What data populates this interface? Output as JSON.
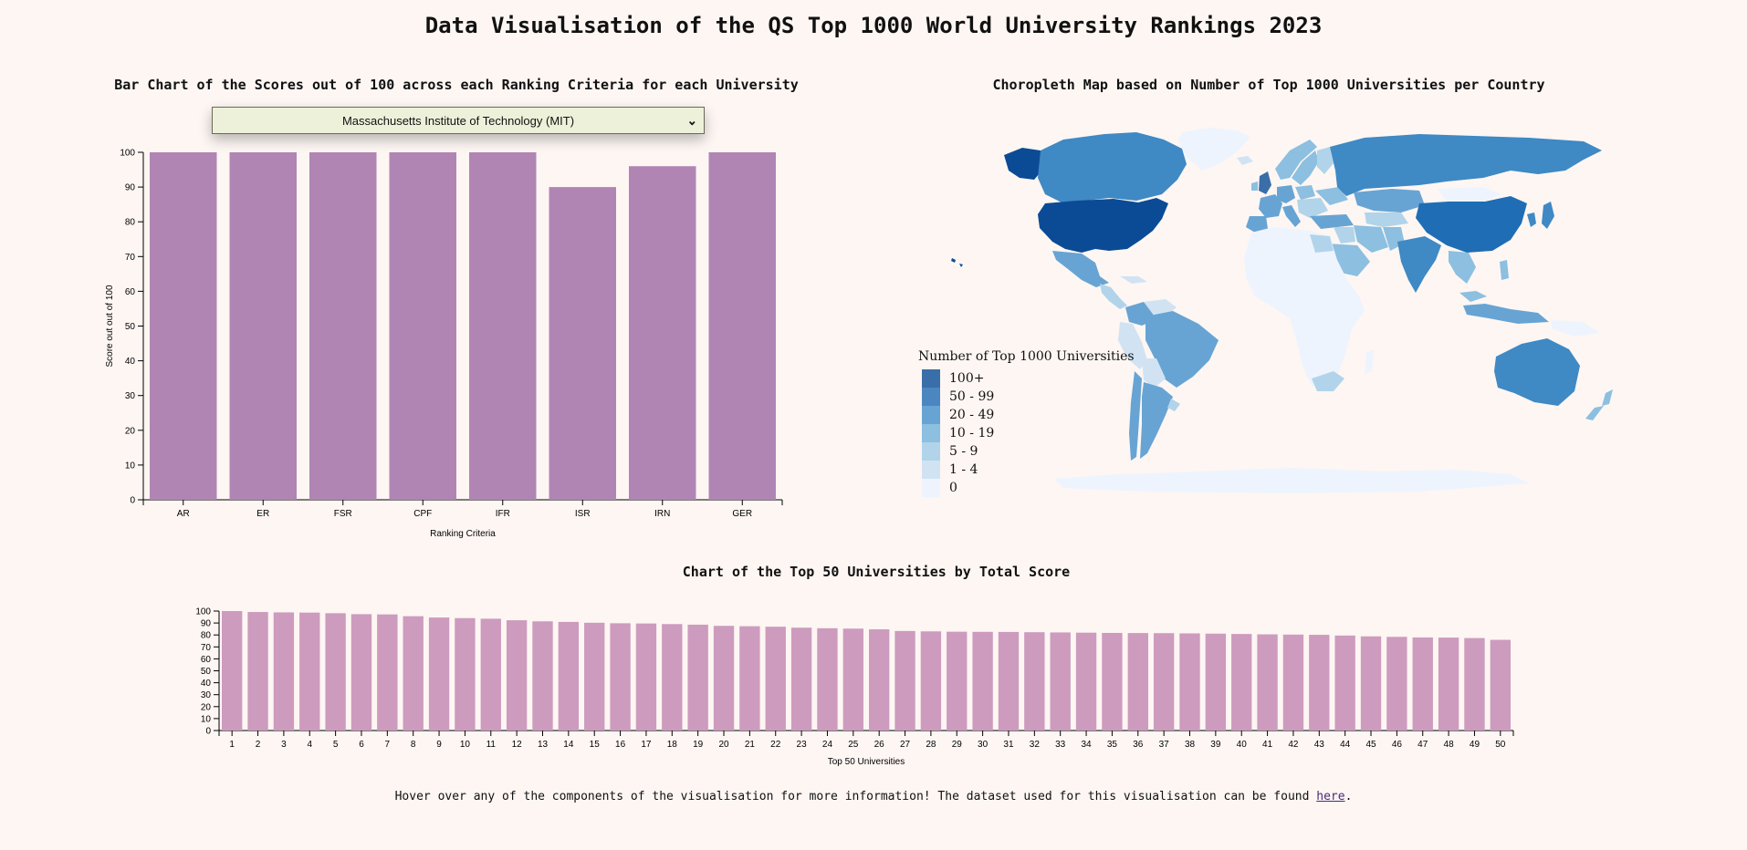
{
  "page": {
    "title": "Data Visualisation of the QS Top 1000 World University Rankings 2023",
    "footer_text": "Hover over any of the components of the visualisation for more information! The dataset used for this visualisation can be found",
    "footer_link": "here",
    "footer_end": "."
  },
  "select": {
    "value": "Massachusetts Institute of Technology (MIT)",
    "chevron": "⌄"
  },
  "colors": {
    "background": "#fdf6f3",
    "bar_fill": "#b085b4",
    "top50_fill": "#cd9bbe",
    "select_bg": "#eef1da"
  },
  "legend": {
    "title": "Number of Top 1000 Universities",
    "items": [
      {
        "label": "100+",
        "color": "#3a6ea8"
      },
      {
        "label": "50 - 99",
        "color": "#4c86c1"
      },
      {
        "label": "20 - 49",
        "color": "#67a4d3"
      },
      {
        "label": "10 - 19",
        "color": "#8cbfe0"
      },
      {
        "label": "5 - 9",
        "color": "#b1d4ea"
      },
      {
        "label": "1 - 4",
        "color": "#d1e3f3"
      },
      {
        "label": "0",
        "color": "#eef4fd"
      }
    ]
  },
  "chart_data": [
    {
      "type": "bar",
      "title": "Bar Chart of the Scores out of 100 across each Ranking Criteria for each University",
      "categories": [
        "AR",
        "ER",
        "FSR",
        "CPF",
        "IFR",
        "ISR",
        "IRN",
        "GER"
      ],
      "values": [
        100,
        100,
        100,
        100,
        100,
        90,
        96,
        100
      ],
      "xlabel": "Ranking Criteria",
      "ylabel": "Score out out of 100",
      "ylim": [
        0,
        100
      ],
      "yticks": [
        0,
        10,
        20,
        30,
        40,
        50,
        60,
        70,
        80,
        90,
        100
      ],
      "grid": false
    },
    {
      "type": "choropleth",
      "title": "Choropleth Map based on Number of Top 1000 Universities per Country",
      "legend_title": "Number of Top 1000 Universities",
      "countries": [
        {
          "name": "United States",
          "bin": "100+"
        },
        {
          "name": "China",
          "bin": "50 - 99"
        },
        {
          "name": "United Kingdom",
          "bin": "50 - 99"
        },
        {
          "name": "Canada",
          "bin": "20 - 49"
        },
        {
          "name": "Russia",
          "bin": "20 - 49"
        },
        {
          "name": "Australia",
          "bin": "20 - 49"
        },
        {
          "name": "India",
          "bin": "20 - 49"
        },
        {
          "name": "Brazil",
          "bin": "20 - 49"
        },
        {
          "name": "Japan",
          "bin": "20 - 49"
        },
        {
          "name": "Germany",
          "bin": "20 - 49"
        },
        {
          "name": "France",
          "bin": "20 - 49"
        },
        {
          "name": "Mexico",
          "bin": "10 - 19"
        },
        {
          "name": "Argentina",
          "bin": "10 - 19"
        },
        {
          "name": "Chile",
          "bin": "10 - 19"
        },
        {
          "name": "Kazakhstan",
          "bin": "10 - 19"
        },
        {
          "name": "Indonesia",
          "bin": "10 - 19"
        },
        {
          "name": "South Africa",
          "bin": "5 - 9"
        },
        {
          "name": "Saudi Arabia",
          "bin": "5 - 9"
        },
        {
          "name": "Iran",
          "bin": "5 - 9"
        },
        {
          "name": "Colombia",
          "bin": "10 - 19"
        },
        {
          "name": "Egypt",
          "bin": "5 - 9"
        },
        {
          "name": "New Zealand",
          "bin": "5 - 9"
        },
        {
          "name": "Peru",
          "bin": "1 - 4"
        },
        {
          "name": "Venezuela",
          "bin": "1 - 4"
        },
        {
          "name": "Greenland",
          "bin": "0"
        },
        {
          "name": "Africa (other)",
          "bin": "0"
        },
        {
          "name": "Antarctica",
          "bin": "0"
        }
      ]
    },
    {
      "type": "bar",
      "title": "Chart of the Top 50 Universities by Total Score",
      "categories": [
        "1",
        "2",
        "3",
        "4",
        "5",
        "6",
        "7",
        "8",
        "9",
        "10",
        "11",
        "12",
        "13",
        "14",
        "15",
        "16",
        "17",
        "18",
        "19",
        "20",
        "21",
        "22",
        "23",
        "24",
        "25",
        "26",
        "27",
        "28",
        "29",
        "30",
        "31",
        "32",
        "33",
        "34",
        "35",
        "36",
        "37",
        "38",
        "39",
        "40",
        "41",
        "42",
        "43",
        "44",
        "45",
        "46",
        "47",
        "48",
        "49",
        "50"
      ],
      "values": [
        100,
        99.2,
        98.9,
        98.7,
        98.2,
        97.4,
        97.2,
        95.7,
        94.6,
        94.1,
        93.6,
        92.3,
        91.4,
        90.9,
        90.2,
        89.8,
        89.6,
        89.1,
        88.6,
        87.6,
        87.3,
        86.9,
        86.1,
        85.6,
        85.3,
        84.7,
        83.3,
        83.0,
        82.7,
        82.6,
        82.5,
        82.3,
        82.1,
        81.9,
        81.7,
        81.6,
        81.5,
        81.3,
        81.1,
        80.8,
        80.5,
        80.3,
        80.1,
        79.5,
        78.8,
        78.4,
        77.9,
        77.8,
        77.4,
        75.9
      ],
      "xlabel": "Top 50 Universities",
      "ylabel": "",
      "ylim": [
        0,
        100
      ],
      "yticks": [
        0,
        10,
        20,
        30,
        40,
        50,
        60,
        70,
        80,
        90,
        100
      ],
      "grid": false
    }
  ]
}
